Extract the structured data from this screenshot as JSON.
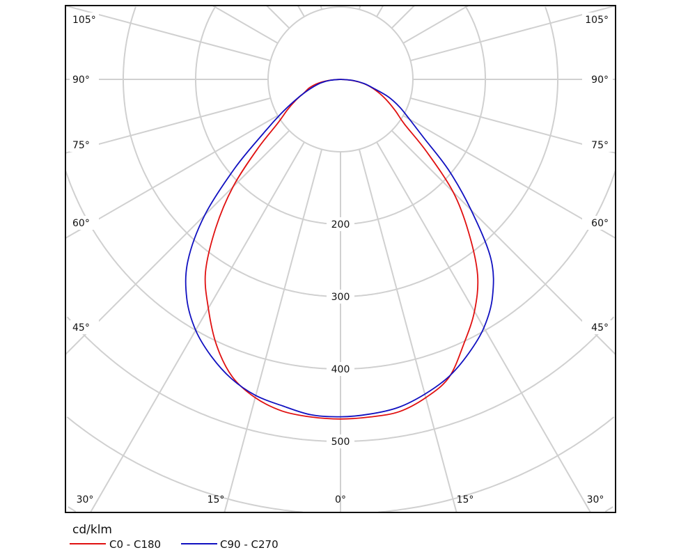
{
  "chart_data": {
    "type": "line",
    "subtype": "polar luminous intensity diagram",
    "unit_label": "cd/klm",
    "radial_ticks": [
      200,
      300,
      400,
      500
    ],
    "radial_rings": [
      100,
      200,
      300,
      400,
      500,
      600,
      700
    ],
    "angle_step_deg": 15,
    "angle_labels": {
      "bottom": [
        "30°",
        "15°",
        "0°",
        "15°",
        "30°"
      ],
      "left": [
        "105°",
        "90°",
        "75°",
        "60°",
        "45°"
      ],
      "right": [
        "105°",
        "90°",
        "75°",
        "60°",
        "45°"
      ]
    },
    "gamma_deg": [
      0,
      5,
      10,
      15,
      20,
      25,
      30,
      35,
      40,
      45,
      50,
      55,
      60,
      65,
      70,
      75,
      80,
      85,
      90
    ],
    "series": [
      {
        "name": "C0 - C180",
        "color": "#e01010",
        "c0_right": [
          469,
          468,
          466,
          455,
          438,
          403,
          370,
          330,
          275,
          220,
          155,
          108,
          88,
          72,
          58,
          45,
          32,
          16,
          0
        ],
        "c180_left": [
          469,
          468,
          465,
          455,
          437,
          405,
          365,
          325,
          268,
          210,
          150,
          106,
          85,
          68,
          53,
          44,
          32,
          16,
          0
        ]
      },
      {
        "name": "C90 - C270",
        "color": "#1010c0",
        "c90_right": [
          466,
          464,
          460,
          450,
          437,
          418,
          396,
          366,
          323,
          255,
          195,
          140,
          110,
          90,
          70,
          47,
          33,
          17,
          0
        ],
        "c270_left": [
          466,
          465,
          458,
          452,
          440,
          422,
          400,
          370,
          328,
          265,
          190,
          130,
          95,
          70,
          52,
          38,
          27,
          14,
          0
        ]
      }
    ],
    "grid": true,
    "legend_position": "bottom-left"
  }
}
